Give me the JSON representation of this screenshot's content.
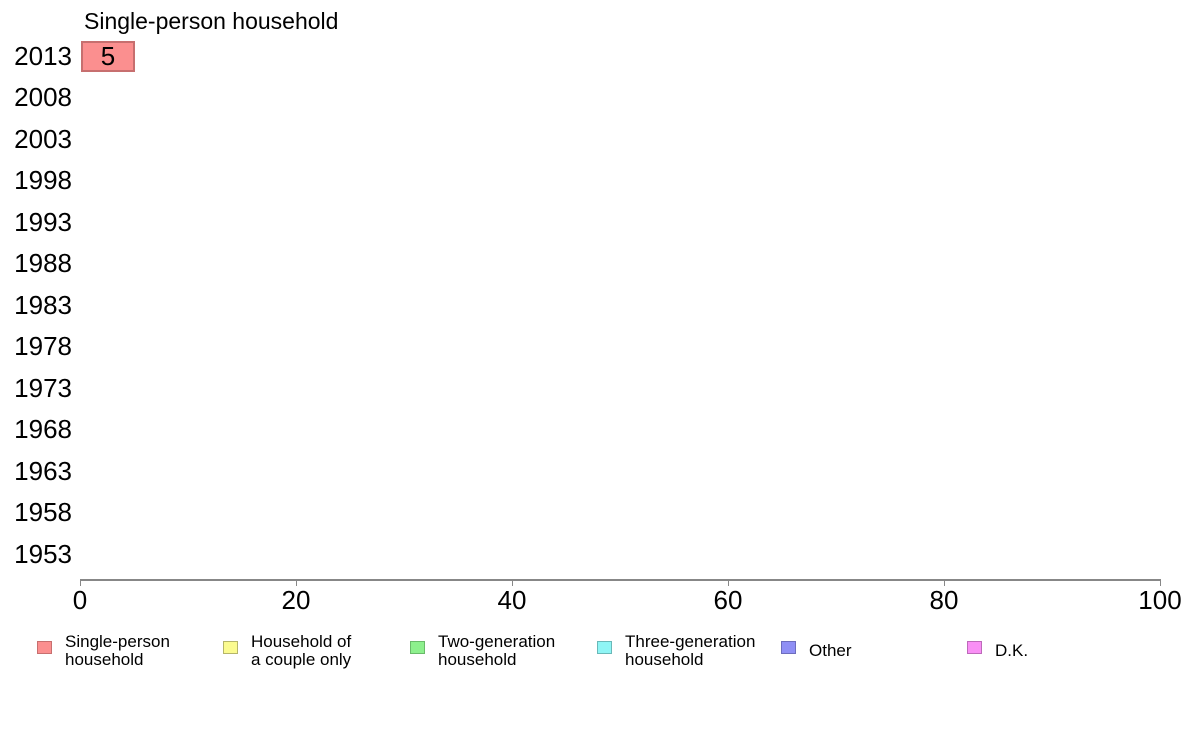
{
  "chart_data": {
    "type": "bar",
    "orientation": "horizontal",
    "stacked": true,
    "title": "Single-person household",
    "categories": [
      "2013",
      "2008",
      "2003",
      "1998",
      "1993",
      "1988",
      "1983",
      "1978",
      "1973",
      "1968",
      "1963",
      "1958",
      "1953"
    ],
    "xlabel": "",
    "ylabel": "",
    "xlim": [
      0,
      100
    ],
    "xticks": [
      0,
      20,
      40,
      60,
      80,
      100
    ],
    "grid": false,
    "bar_value_labels": true,
    "legend_position": "bottom",
    "axis_color": "#878787",
    "series": [
      {
        "name": "Single-person household",
        "legend_lines": [
          "Single-person",
          "household"
        ],
        "color": "#fb8f8f",
        "border_color": "#c76f6f",
        "values": [
          5,
          null,
          null,
          null,
          null,
          null,
          null,
          null,
          null,
          null,
          null,
          null,
          null
        ]
      },
      {
        "name": "Household of a couple only",
        "legend_lines": [
          "Household of",
          "a couple only"
        ],
        "color": "#fbfb8f",
        "border_color": "#b5b56a",
        "values": [
          null,
          null,
          null,
          null,
          null,
          null,
          null,
          null,
          null,
          null,
          null,
          null,
          null
        ]
      },
      {
        "name": "Two-generation household",
        "legend_lines": [
          "Two-generation",
          "household"
        ],
        "color": "#8df08d",
        "border_color": "#6aba6a",
        "values": [
          null,
          null,
          null,
          null,
          null,
          null,
          null,
          null,
          null,
          null,
          null,
          null,
          null
        ]
      },
      {
        "name": "Three-generation household",
        "legend_lines": [
          "Three-generation",
          "household"
        ],
        "color": "#8ff5f5",
        "border_color": "#6ab8b8",
        "values": [
          null,
          null,
          null,
          null,
          null,
          null,
          null,
          null,
          null,
          null,
          null,
          null,
          null
        ]
      },
      {
        "name": "Other",
        "legend_lines": [
          "Other"
        ],
        "color": "#8f8ff5",
        "border_color": "#6d6dbd",
        "values": [
          null,
          null,
          null,
          null,
          null,
          null,
          null,
          null,
          null,
          null,
          null,
          null,
          null
        ]
      },
      {
        "name": "D.K.",
        "legend_lines": [
          "D.K."
        ],
        "color": "#f98ff5",
        "border_color": "#bd6aba",
        "values": [
          null,
          null,
          null,
          null,
          null,
          null,
          null,
          null,
          null,
          null,
          null,
          null,
          null
        ]
      }
    ]
  }
}
